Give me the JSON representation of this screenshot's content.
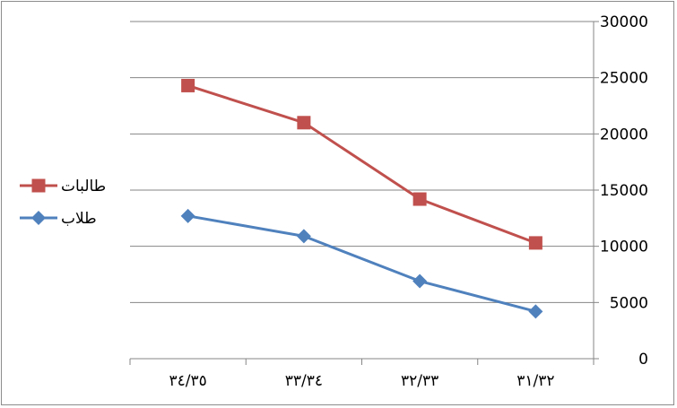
{
  "chart_data": {
    "type": "line",
    "categories": [
      "٣٤/٣٥",
      "٣٣/٣٤",
      "٣٢/٣٣",
      "٣١/٣٢"
    ],
    "series": [
      {
        "name": "طالبات",
        "values": [
          24300,
          21000,
          14200,
          10300
        ],
        "color": "#c0504d",
        "marker": "square"
      },
      {
        "name": "طلاب",
        "values": [
          12700,
          10900,
          6900,
          4200
        ],
        "color": "#4f81bd",
        "marker": "diamond"
      }
    ],
    "ylim": [
      0,
      30000
    ],
    "yticks": [
      0,
      5000,
      10000,
      15000,
      20000,
      25000,
      30000
    ],
    "y_axis_side": "right",
    "grid": true,
    "legend_position": "left",
    "title": "",
    "xlabel": "",
    "ylabel": ""
  }
}
